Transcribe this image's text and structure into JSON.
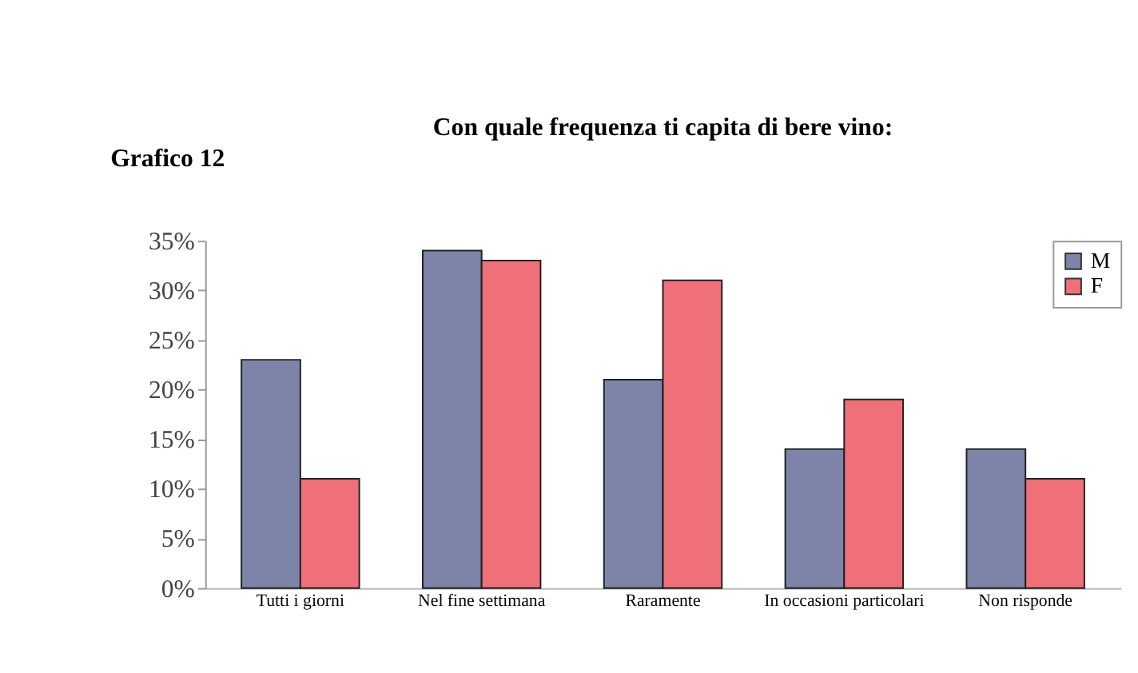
{
  "chart_data": {
    "type": "bar",
    "title": "Con quale frequenza ti capita di bere vino:",
    "annotations": [
      "Grafico 12"
    ],
    "categories": [
      "Tutti i giorni",
      "Nel fine settimana",
      "Raramente",
      "In occasioni particolari",
      "Non risponde"
    ],
    "series": [
      {
        "name": "M",
        "color": "#7d84a8",
        "values": [
          23,
          34,
          21,
          14,
          14
        ]
      },
      {
        "name": "F",
        "color": "#f0707a",
        "values": [
          11,
          33,
          31,
          19,
          11
        ]
      }
    ],
    "ylim": [
      0,
      35
    ],
    "yticks": [
      {
        "value": 0,
        "label": "0%"
      },
      {
        "value": 5,
        "label": "5%"
      },
      {
        "value": 10,
        "label": "10%"
      },
      {
        "value": 15,
        "label": "15%"
      },
      {
        "value": 20,
        "label": "20%"
      },
      {
        "value": 25,
        "label": "25%"
      },
      {
        "value": 30,
        "label": "30%"
      },
      {
        "value": 35,
        "label": "35%"
      }
    ],
    "grid": false,
    "legend": "top right"
  }
}
